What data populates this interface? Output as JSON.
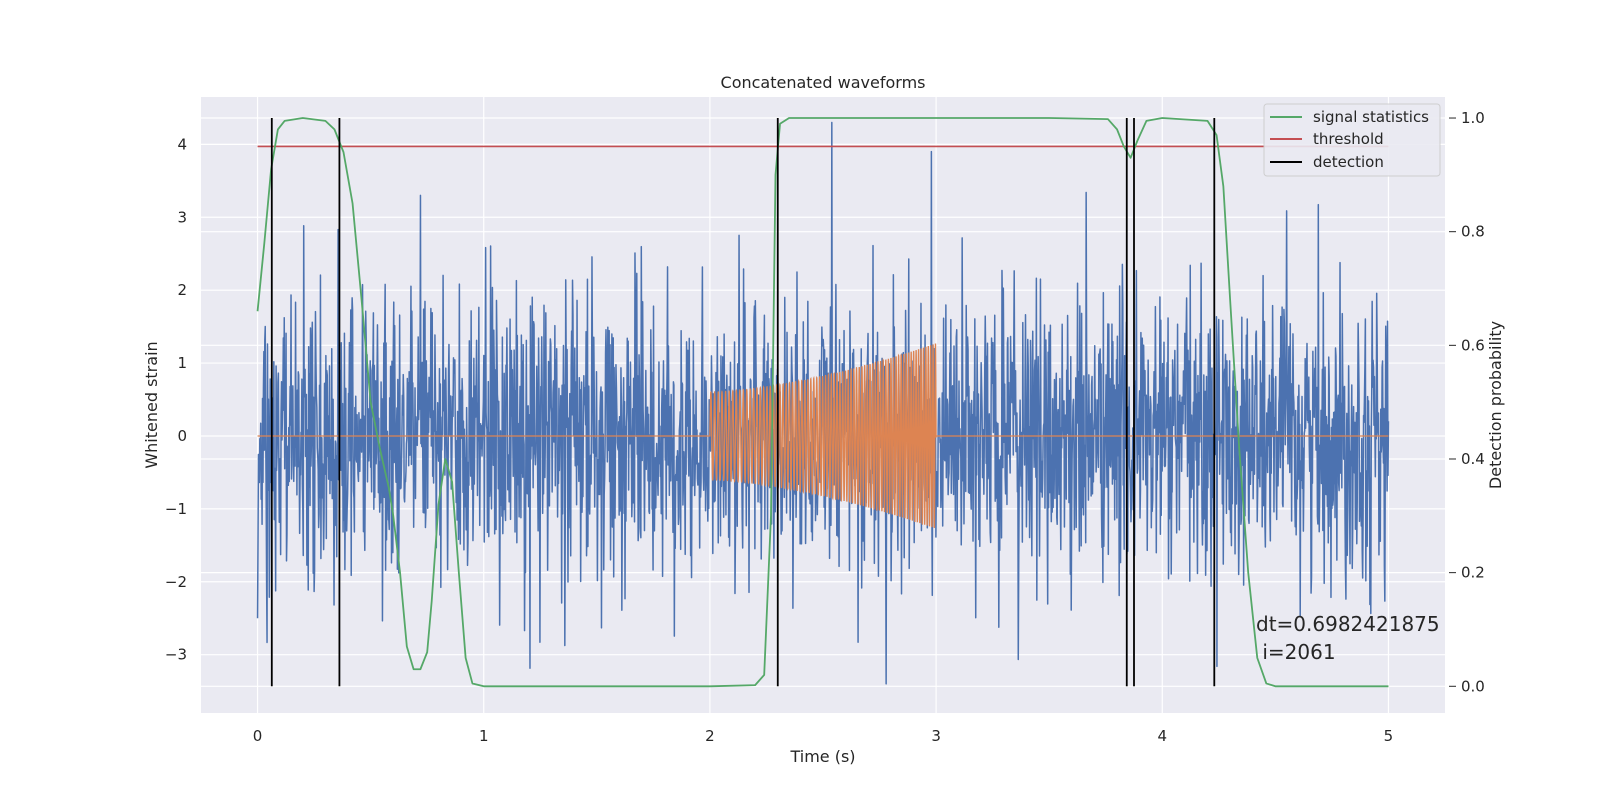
{
  "chart_data": {
    "type": "line",
    "title": "Concatenated waveforms",
    "xlabel": "Time (s)",
    "ylabel": "Whitened strain",
    "y2label": "Detection probability",
    "xlim": [
      -0.25,
      5.25
    ],
    "ylim": [
      -3.8,
      4.65
    ],
    "y2lim": [
      -0.047,
      1.037
    ],
    "x_ticks": [
      0,
      1,
      2,
      3,
      4,
      5
    ],
    "y_ticks": [
      -3,
      -2,
      -1,
      0,
      1,
      2,
      3,
      4
    ],
    "y2_ticks": [
      0.0,
      0.2,
      0.4,
      0.6,
      0.8,
      1.0
    ],
    "grid": true,
    "legend_position": "top-right",
    "series": [
      {
        "name": "",
        "role": "whitened-noise",
        "color": "#4c72b0",
        "x_range": [
          0,
          5
        ],
        "sample_count": 2500,
        "typical_amplitude_sigma": 0.95,
        "peak_values": [
          {
            "x": 2.54,
            "y": 4.3
          },
          {
            "x": 2.78,
            "y": -3.4
          },
          {
            "x": 2.98,
            "y": 3.9
          },
          {
            "x": 0.72,
            "y": 3.3
          },
          {
            "x": 0.0,
            "y": -2.5
          }
        ]
      },
      {
        "name": "",
        "role": "injected-chirp",
        "color": "#dd8452",
        "x_range": [
          0,
          5
        ],
        "active_range": [
          2.0,
          3.0
        ],
        "start_amplitude": 0.6,
        "end_amplitude": 1.27,
        "start_frequency_hz": 60,
        "end_frequency_hz": 95
      },
      {
        "name": "signal statistics",
        "color": "#55a868",
        "axis": "right",
        "points": [
          [
            0.0,
            0.66
          ],
          [
            0.03,
            0.78
          ],
          [
            0.06,
            0.91
          ],
          [
            0.09,
            0.98
          ],
          [
            0.12,
            0.995
          ],
          [
            0.2,
            1.0
          ],
          [
            0.3,
            0.995
          ],
          [
            0.34,
            0.98
          ],
          [
            0.38,
            0.94
          ],
          [
            0.42,
            0.85
          ],
          [
            0.46,
            0.68
          ],
          [
            0.5,
            0.5
          ],
          [
            0.54,
            0.42
          ],
          [
            0.58,
            0.35
          ],
          [
            0.6,
            0.3
          ],
          [
            0.63,
            0.2
          ],
          [
            0.66,
            0.07
          ],
          [
            0.69,
            0.03
          ],
          [
            0.72,
            0.03
          ],
          [
            0.75,
            0.06
          ],
          [
            0.77,
            0.15
          ],
          [
            0.8,
            0.32
          ],
          [
            0.83,
            0.4
          ],
          [
            0.86,
            0.36
          ],
          [
            0.89,
            0.2
          ],
          [
            0.92,
            0.05
          ],
          [
            0.95,
            0.005
          ],
          [
            1.0,
            0.0
          ],
          [
            1.5,
            0.0
          ],
          [
            2.0,
            0.0
          ],
          [
            2.2,
            0.002
          ],
          [
            2.24,
            0.02
          ],
          [
            2.27,
            0.3
          ],
          [
            2.29,
            0.9
          ],
          [
            2.31,
            0.99
          ],
          [
            2.35,
            1.0
          ],
          [
            3.0,
            1.0
          ],
          [
            3.5,
            1.0
          ],
          [
            3.76,
            0.998
          ],
          [
            3.8,
            0.98
          ],
          [
            3.83,
            0.95
          ],
          [
            3.86,
            0.93
          ],
          [
            3.89,
            0.96
          ],
          [
            3.93,
            0.995
          ],
          [
            4.0,
            1.0
          ],
          [
            4.2,
            0.995
          ],
          [
            4.24,
            0.97
          ],
          [
            4.27,
            0.88
          ],
          [
            4.3,
            0.68
          ],
          [
            4.34,
            0.42
          ],
          [
            4.38,
            0.2
          ],
          [
            4.42,
            0.05
          ],
          [
            4.46,
            0.005
          ],
          [
            4.5,
            0.0
          ],
          [
            5.0,
            0.0
          ]
        ]
      },
      {
        "name": "threshold",
        "color": "#c44e52",
        "axis": "right",
        "x": [
          0,
          5
        ],
        "y": [
          0.95,
          0.95
        ]
      },
      {
        "name": "detection",
        "color": "#000000",
        "axis": "right",
        "type": "vlines",
        "x": [
          0.063,
          0.362,
          2.3,
          3.843,
          3.875,
          4.23
        ],
        "y_range": [
          0.0,
          1.0
        ]
      }
    ],
    "annotations": [
      "dt=0.6982421875",
      " i=2061"
    ]
  }
}
